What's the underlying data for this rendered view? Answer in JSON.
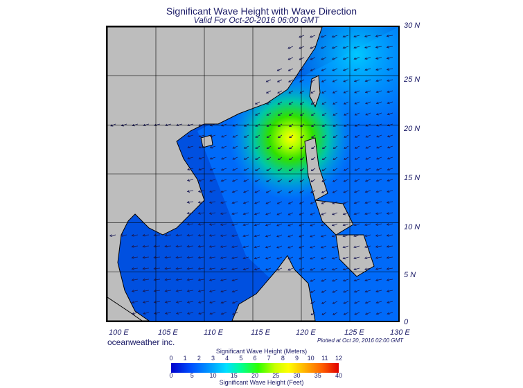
{
  "header": {
    "title": "Significant Wave Height with Wave Direction",
    "subtitle": "Valid For Oct-20-2016 06:00 GMT"
  },
  "map": {
    "lat_labels": [
      "30 N",
      "25 N",
      "20 N",
      "15 N",
      "10 N",
      "5 N",
      "0"
    ],
    "lon_labels": [
      "100 E",
      "105 E",
      "110 E",
      "115 E",
      "120 E",
      "125 E",
      "130 E"
    ],
    "land_color": "#bdbdbd",
    "water_color": "#0050e0",
    "peak_color": "#ffff00",
    "arrow_color": "#1a1a55"
  },
  "footer": {
    "brand": "oceanweather inc.",
    "plotted": "Plotted at Oct 20, 2016 02:00 GMT"
  },
  "colorbar": {
    "title_meters": "Significant Wave Height (Meters)",
    "title_feet": "Significant Wave Height (Feet)",
    "meter_ticks": [
      "0",
      "1",
      "2",
      "3",
      "4",
      "5",
      "6",
      "7",
      "8",
      "9",
      "10",
      "11",
      "12"
    ],
    "feet_ticks": [
      "0",
      "5",
      "10",
      "15",
      "20",
      "25",
      "30",
      "35",
      "40"
    ]
  }
}
